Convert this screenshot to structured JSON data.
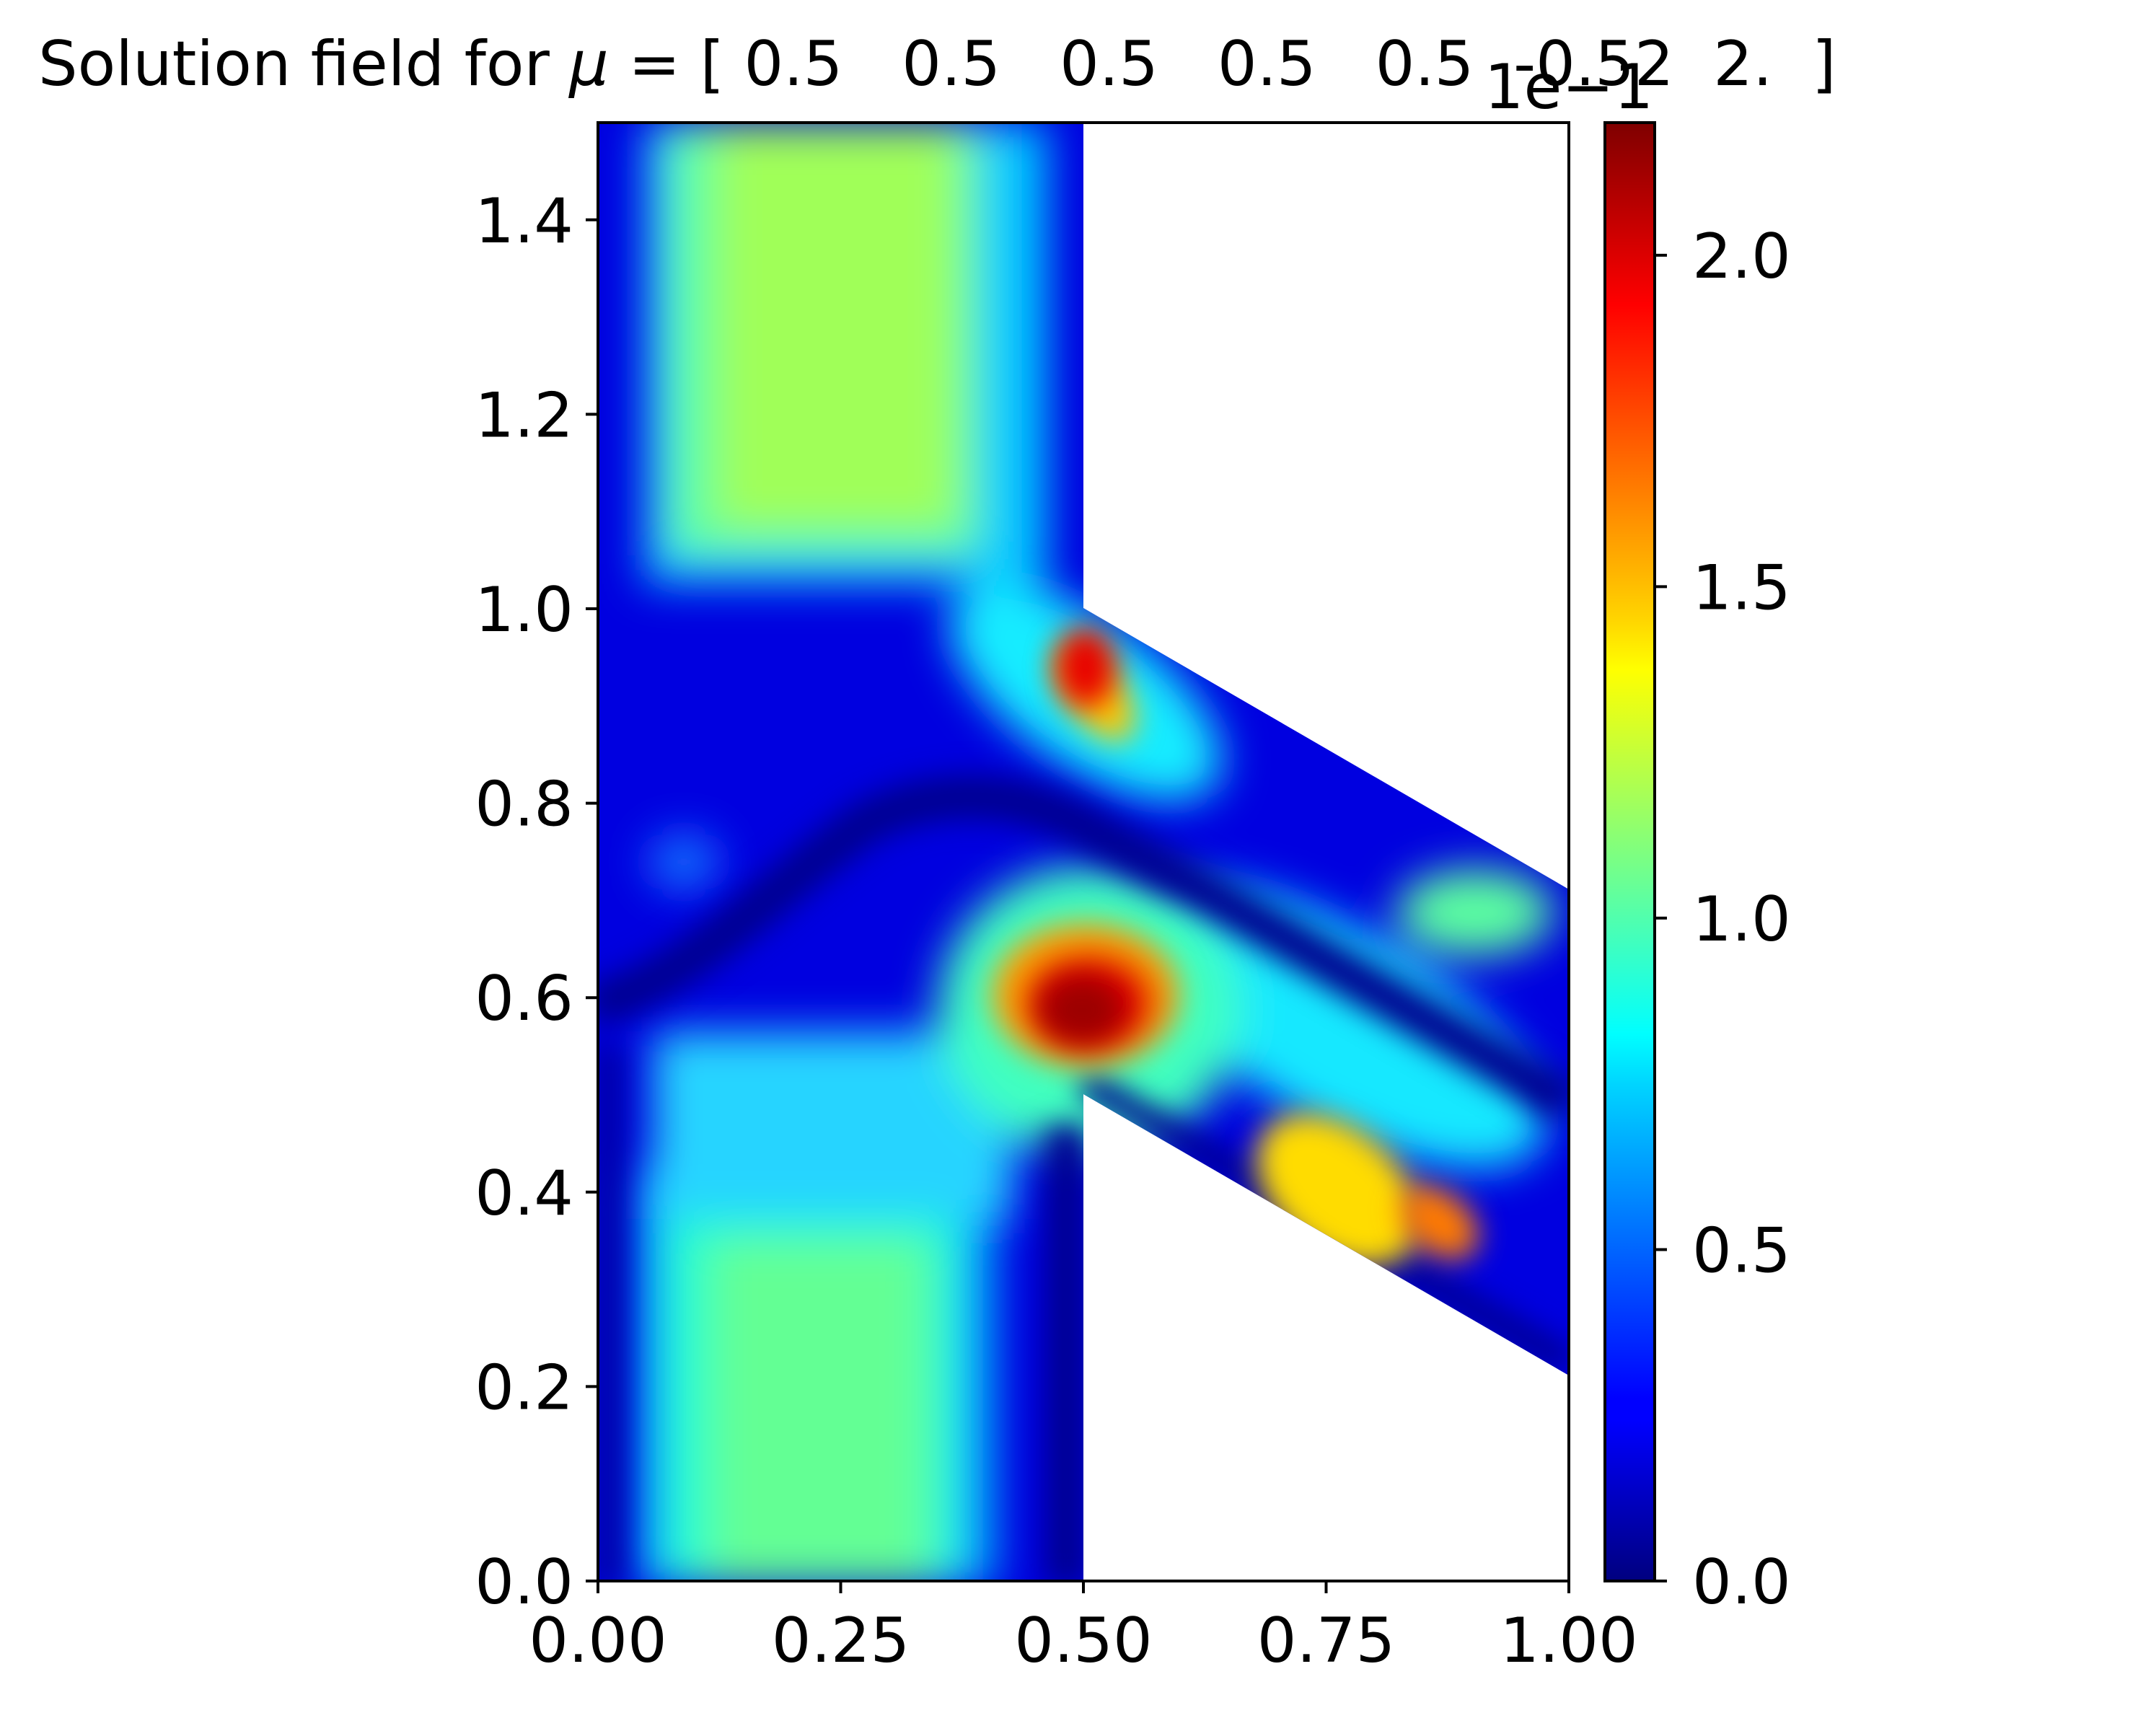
{
  "chart_data": {
    "type": "heatmap",
    "title": "Solution field for μ = [ 0.5   0.5   0.5   0.5   0.5  -0.52  2.  ]",
    "title_prefix": "Solution field for ",
    "title_symbol": "μ",
    "title_values": " = [ 0.5   0.5   0.5   0.5   0.5  -0.52  2.  ]",
    "xlabel": "",
    "ylabel": "",
    "xlim": [
      0.0,
      1.0
    ],
    "ylim": [
      0.0,
      1.5
    ],
    "x_ticks": [
      0.0,
      0.25,
      0.5,
      0.75,
      1.0
    ],
    "x_tick_labels": [
      "0.00",
      "0.25",
      "0.50",
      "0.75",
      "1.00"
    ],
    "y_ticks": [
      0.0,
      0.2,
      0.4,
      0.6,
      0.8,
      1.0,
      1.2,
      1.4
    ],
    "y_tick_labels": [
      "0.0",
      "0.2",
      "0.4",
      "0.6",
      "0.8",
      "1.0",
      "1.2",
      "1.4"
    ],
    "grid": false,
    "colormap": "jet",
    "colorbar": {
      "range": [
        0.0,
        0.22
      ],
      "scale_label": "1e−1",
      "ticks": [
        0.0,
        0.05,
        0.1,
        0.15,
        0.2
      ],
      "tick_labels": [
        "0.0",
        "0.5",
        "1.0",
        "1.5",
        "2.0"
      ]
    },
    "domain": {
      "vertical_channel": {
        "x": [
          0.0,
          0.5
        ],
        "y": [
          0.0,
          1.5
        ]
      },
      "branch": {
        "vertices": [
          [
            0.5,
            1.0
          ],
          [
            1.0,
            0.71
          ],
          [
            1.0,
            0.21
          ],
          [
            0.5,
            0.5
          ]
        ]
      }
    },
    "field_features": [
      {
        "label": "upper channel plateau",
        "x": 0.28,
        "y": 1.3,
        "value": 0.12
      },
      {
        "label": "lower channel plateau",
        "x": 0.26,
        "y": 0.3,
        "value": 0.1
      },
      {
        "label": "peak near junction top",
        "x": 0.49,
        "y": 0.93,
        "value": 0.2
      },
      {
        "label": "peak at junction center",
        "x": 0.49,
        "y": 0.59,
        "value": 0.22
      },
      {
        "label": "branch lower lobe",
        "x": 0.87,
        "y": 0.38,
        "value": 0.16
      },
      {
        "label": "branch upper lobe",
        "x": 0.95,
        "y": 0.68,
        "value": 0.1
      }
    ]
  }
}
